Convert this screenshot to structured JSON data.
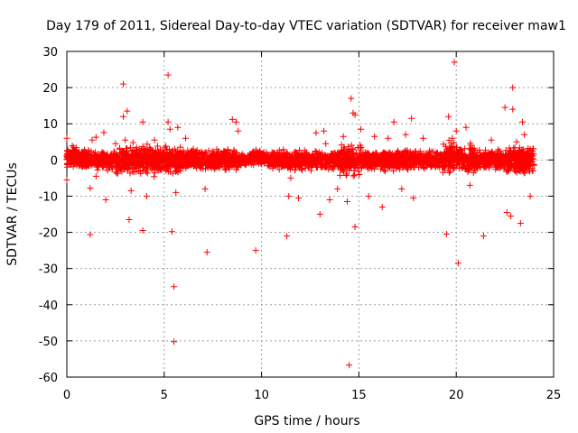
{
  "chart_data": {
    "type": "scatter",
    "title": "Day 179 of 2011, Sidereal Day-to-day VTEC variation (SDTVAR) for receiver maw1",
    "xlabel": "GPS time / hours",
    "ylabel": "SDTVAR / TECUs",
    "xlim": [
      0,
      25
    ],
    "ylim": [
      -60,
      30
    ],
    "xticks": [
      0,
      5,
      10,
      15,
      20,
      25
    ],
    "xtick_labels": [
      "0",
      "5",
      "10",
      "15",
      "20",
      "25"
    ],
    "yticks": [
      -60,
      -50,
      -40,
      -30,
      -20,
      -10,
      0,
      10,
      20,
      30
    ],
    "ytick_labels": [
      "-60",
      "-50",
      "-40",
      "-30",
      "-20",
      "-10",
      "0",
      "10",
      "20",
      "30"
    ],
    "grid": true,
    "marker": "+",
    "color": "#ff0000",
    "series": [
      {
        "name": "SDTVAR",
        "note": "dense band of points roughly between -3 and +3 TECU from 0 to 24 h, plus the outliers listed",
        "points": [
          [
            0.0,
            6.0
          ],
          [
            0.0,
            -5.5
          ],
          [
            0.5,
            2.5
          ],
          [
            0.9,
            2.8
          ],
          [
            1.2,
            -20.6
          ],
          [
            1.2,
            -7.8
          ],
          [
            1.3,
            5.5
          ],
          [
            1.5,
            6.3
          ],
          [
            1.5,
            -4.5
          ],
          [
            1.9,
            7.6
          ],
          [
            2.0,
            -11.0
          ],
          [
            2.5,
            4.5
          ],
          [
            2.9,
            21.0
          ],
          [
            2.9,
            12.0
          ],
          [
            3.0,
            5.5
          ],
          [
            3.1,
            13.5
          ],
          [
            3.2,
            -16.5
          ],
          [
            3.3,
            -8.5
          ],
          [
            3.4,
            4.8
          ],
          [
            3.9,
            -19.5
          ],
          [
            3.9,
            10.5
          ],
          [
            4.1,
            -10.0
          ],
          [
            4.5,
            5.5
          ],
          [
            5.2,
            23.5
          ],
          [
            5.2,
            10.5
          ],
          [
            5.3,
            8.5
          ],
          [
            5.4,
            -19.8
          ],
          [
            5.5,
            -35.0
          ],
          [
            5.5,
            -50.2
          ],
          [
            5.6,
            -9.0
          ],
          [
            5.7,
            9.0
          ],
          [
            6.1,
            6.0
          ],
          [
            6.5,
            3.0
          ],
          [
            7.1,
            -8.0
          ],
          [
            7.2,
            -25.5
          ],
          [
            8.5,
            11.2
          ],
          [
            8.7,
            10.5
          ],
          [
            8.8,
            8.0
          ],
          [
            9.7,
            -25.0
          ],
          [
            11.3,
            -21.0
          ],
          [
            11.4,
            -10.0
          ],
          [
            11.5,
            -5.0
          ],
          [
            11.9,
            -10.5
          ],
          [
            12.8,
            7.5
          ],
          [
            13.0,
            -15.0
          ],
          [
            13.2,
            8.0
          ],
          [
            13.3,
            4.5
          ],
          [
            13.5,
            -11.0
          ],
          [
            13.9,
            -8.0
          ],
          [
            14.2,
            6.5
          ],
          [
            14.4,
            -11.5
          ],
          [
            14.5,
            -56.7
          ],
          [
            14.6,
            17.0
          ],
          [
            14.7,
            13.0
          ],
          [
            14.8,
            12.5
          ],
          [
            14.8,
            -18.5
          ],
          [
            15.1,
            8.5
          ],
          [
            15.5,
            -10.0
          ],
          [
            15.8,
            6.5
          ],
          [
            16.2,
            -13.0
          ],
          [
            16.5,
            6.0
          ],
          [
            16.8,
            10.5
          ],
          [
            17.2,
            -8.0
          ],
          [
            17.4,
            7.0
          ],
          [
            17.7,
            11.5
          ],
          [
            17.8,
            -10.5
          ],
          [
            18.3,
            6.0
          ],
          [
            19.5,
            -20.5
          ],
          [
            19.6,
            12.0
          ],
          [
            19.8,
            6.0
          ],
          [
            19.9,
            27.0
          ],
          [
            20.0,
            8.0
          ],
          [
            20.1,
            -28.5
          ],
          [
            20.5,
            9.0
          ],
          [
            20.7,
            -7.0
          ],
          [
            21.4,
            -21.0
          ],
          [
            21.8,
            5.5
          ],
          [
            22.5,
            14.5
          ],
          [
            22.6,
            -14.5
          ],
          [
            22.8,
            -15.5
          ],
          [
            22.9,
            20.0
          ],
          [
            22.9,
            14.0
          ],
          [
            23.1,
            5.0
          ],
          [
            23.3,
            -17.5
          ],
          [
            23.4,
            10.5
          ],
          [
            23.5,
            7.0
          ],
          [
            23.8,
            -10.0
          ],
          [
            23.8,
            3.0
          ]
        ]
      }
    ]
  }
}
